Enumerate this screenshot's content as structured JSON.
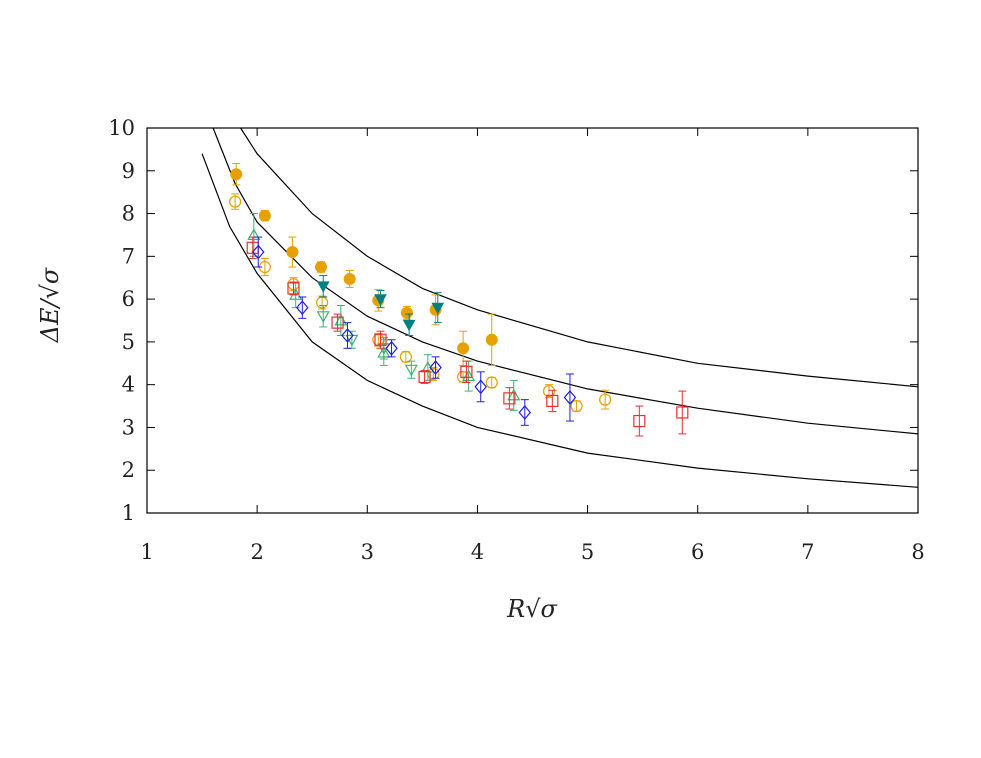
{
  "chart_data": {
    "type": "scatter",
    "title": "",
    "xlabel": "R√σ",
    "ylabel": "ΔE/√σ",
    "xlim": [
      1,
      8
    ],
    "ylim": [
      1,
      10
    ],
    "x_ticks": [
      "1",
      "2",
      "3",
      "4",
      "5",
      "6",
      "7",
      "8"
    ],
    "y_ticks": [
      "1",
      "2",
      "3",
      "4",
      "5",
      "6",
      "7",
      "8",
      "9",
      "10"
    ],
    "grid": false,
    "legend": "none",
    "curves": [
      {
        "color": "#000000",
        "x": [
          1.5,
          1.75,
          2,
          2.5,
          3,
          3.5,
          4,
          5,
          6,
          7,
          8
        ],
        "y": [
          9.4,
          7.7,
          6.6,
          5.0,
          4.1,
          3.5,
          3.0,
          2.4,
          2.05,
          1.8,
          1.6
        ]
      },
      {
        "color": "#000000",
        "x": [
          1.6,
          1.8,
          2,
          2.5,
          3,
          3.5,
          4,
          5,
          6,
          7,
          8
        ],
        "y": [
          10.0,
          8.7,
          7.8,
          6.5,
          5.6,
          5.0,
          4.55,
          3.9,
          3.45,
          3.1,
          2.85
        ]
      },
      {
        "color": "#000000",
        "x": [
          1.85,
          2,
          2.5,
          3,
          3.5,
          4,
          5,
          6,
          7,
          8
        ],
        "y": [
          10.0,
          9.4,
          8.0,
          7.0,
          6.25,
          5.75,
          5.0,
          4.5,
          4.2,
          3.95
        ]
      }
    ],
    "series": [
      {
        "color": "#e6a000",
        "marker": "filled-circle",
        "points": [
          {
            "x": 1.81,
            "y": 8.92,
            "err": 0.25
          },
          {
            "x": 2.07,
            "y": 7.95,
            "err": 0.12
          },
          {
            "x": 2.32,
            "y": 7.1,
            "err": 0.35
          },
          {
            "x": 2.58,
            "y": 6.75,
            "err": 0.12
          },
          {
            "x": 2.84,
            "y": 6.47,
            "err": 0.2
          },
          {
            "x": 3.1,
            "y": 5.97,
            "err": 0.25
          },
          {
            "x": 3.36,
            "y": 5.68,
            "err": 0.15
          },
          {
            "x": 3.62,
            "y": 5.75,
            "err": 0.35
          },
          {
            "x": 3.87,
            "y": 4.85,
            "err": 0.4
          },
          {
            "x": 4.13,
            "y": 5.05,
            "err": 0.6
          }
        ]
      },
      {
        "color": "#e6a000",
        "marker": "open-circle",
        "points": [
          {
            "x": 1.8,
            "y": 8.28,
            "err": 0.18
          },
          {
            "x": 2.07,
            "y": 6.75,
            "err": 0.2
          },
          {
            "x": 2.33,
            "y": 6.35,
            "err": 0.15
          },
          {
            "x": 2.59,
            "y": 5.92,
            "err": 0.15
          },
          {
            "x": 3.1,
            "y": 5.05,
            "err": 0.15
          },
          {
            "x": 3.35,
            "y": 4.65,
            "err": 0.12
          },
          {
            "x": 3.6,
            "y": 4.25,
            "err": 0.15
          },
          {
            "x": 3.87,
            "y": 4.18,
            "err": 0.12
          },
          {
            "x": 4.13,
            "y": 4.05,
            "err": 0.12
          },
          {
            "x": 4.65,
            "y": 3.85,
            "err": 0.15
          },
          {
            "x": 4.9,
            "y": 3.5,
            "err": 0.12
          },
          {
            "x": 5.16,
            "y": 3.65,
            "err": 0.22
          }
        ]
      },
      {
        "color": "#008080",
        "marker": "filled-down-triangle",
        "points": [
          {
            "x": 2.6,
            "y": 6.3,
            "err": 0.25
          },
          {
            "x": 3.12,
            "y": 6.0,
            "err": 0.2
          },
          {
            "x": 3.38,
            "y": 5.4,
            "err": 0.25
          },
          {
            "x": 3.64,
            "y": 5.8,
            "err": 0.35
          }
        ]
      },
      {
        "color": "#3cb371",
        "marker": "open-up-triangle",
        "points": [
          {
            "x": 1.97,
            "y": 7.5,
            "err": 0.5
          },
          {
            "x": 2.35,
            "y": 6.1,
            "err": 0.3
          },
          {
            "x": 2.76,
            "y": 5.5,
            "err": 0.35
          },
          {
            "x": 3.15,
            "y": 4.75,
            "err": 0.3
          },
          {
            "x": 3.55,
            "y": 4.4,
            "err": 0.3
          },
          {
            "x": 3.92,
            "y": 4.2,
            "err": 0.35
          },
          {
            "x": 4.33,
            "y": 3.75,
            "err": 0.35
          }
        ]
      },
      {
        "color": "#3cb371",
        "marker": "open-down-triangle",
        "points": [
          {
            "x": 2.6,
            "y": 5.6,
            "err": 0.25
          },
          {
            "x": 2.86,
            "y": 5.05,
            "err": 0.2
          },
          {
            "x": 3.15,
            "y": 4.85,
            "err": 0.25
          },
          {
            "x": 3.4,
            "y": 4.35,
            "err": 0.2
          }
        ]
      },
      {
        "color": "#e83030",
        "marker": "open-square",
        "points": [
          {
            "x": 1.96,
            "y": 7.2,
            "err": 0.25
          },
          {
            "x": 2.33,
            "y": 6.25,
            "err": 0.15
          },
          {
            "x": 2.73,
            "y": 5.45,
            "err": 0.2
          },
          {
            "x": 3.12,
            "y": 5.05,
            "err": 0.2
          },
          {
            "x": 3.52,
            "y": 4.18,
            "err": 0.15
          },
          {
            "x": 3.9,
            "y": 4.3,
            "err": 0.25
          },
          {
            "x": 4.29,
            "y": 3.68,
            "err": 0.25
          },
          {
            "x": 4.68,
            "y": 3.62,
            "err": 0.25
          },
          {
            "x": 5.47,
            "y": 3.15,
            "err": 0.35
          },
          {
            "x": 5.86,
            "y": 3.35,
            "err": 0.5
          }
        ]
      },
      {
        "color": "#2020e0",
        "marker": "open-diamond",
        "points": [
          {
            "x": 2.01,
            "y": 7.1,
            "err": 0.35
          },
          {
            "x": 2.41,
            "y": 5.8,
            "err": 0.25
          },
          {
            "x": 2.82,
            "y": 5.15,
            "err": 0.3
          },
          {
            "x": 3.22,
            "y": 4.85,
            "err": 0.2
          },
          {
            "x": 3.62,
            "y": 4.4,
            "err": 0.25
          },
          {
            "x": 4.03,
            "y": 3.95,
            "err": 0.35
          },
          {
            "x": 4.43,
            "y": 3.35,
            "err": 0.3
          },
          {
            "x": 4.84,
            "y": 3.7,
            "err": 0.55
          }
        ]
      }
    ]
  }
}
